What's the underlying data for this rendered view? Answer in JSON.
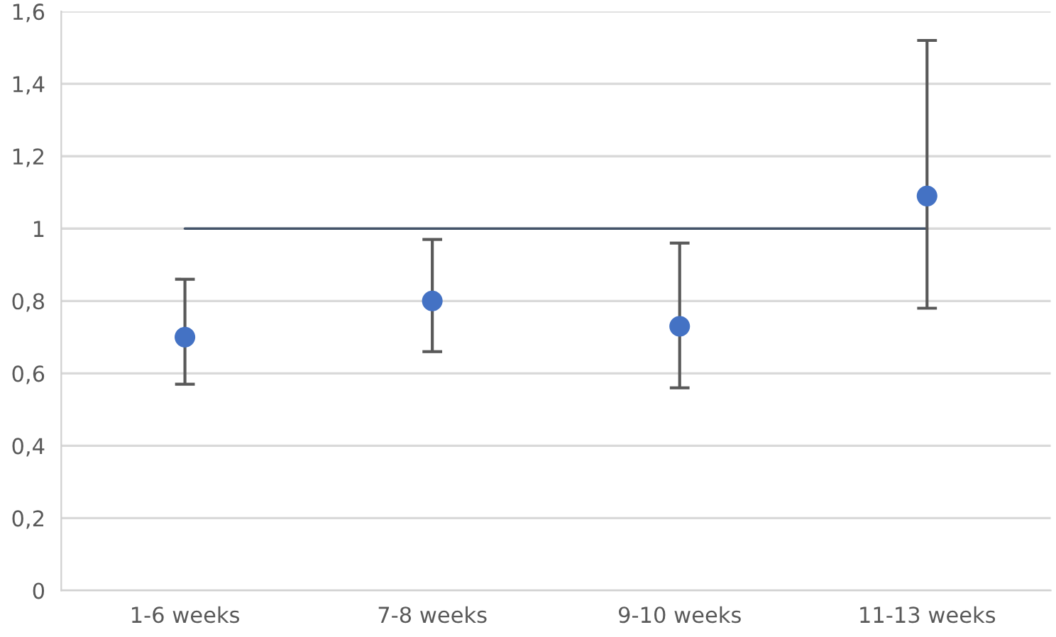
{
  "chart_data": {
    "type": "scatter",
    "categories": [
      "1-6 weeks",
      "7-8 weeks",
      "9-10 weeks",
      "11-13 weeks"
    ],
    "series": [
      {
        "type": "line",
        "color": "#44546a",
        "values": [
          1,
          1,
          1,
          1
        ],
        "marker": "none"
      },
      {
        "color": "#4472c4",
        "values": [
          0.7,
          0.8,
          0.73,
          1.09
        ],
        "errors": [
          [
            0.57,
            0.86
          ],
          [
            0.66,
            0.97
          ],
          [
            0.56,
            0.96
          ],
          [
            0.78,
            1.52
          ]
        ],
        "marker": "circle"
      }
    ],
    "ylim": [
      0,
      1.6
    ],
    "yticks": [
      {
        "value": 0,
        "label": "0"
      },
      {
        "value": 0.2,
        "label": "0,2"
      },
      {
        "value": 0.4,
        "label": "0,4"
      },
      {
        "value": 0.6,
        "label": "0,6"
      },
      {
        "value": 0.8,
        "label": "0,8"
      },
      {
        "value": 1,
        "label": "1"
      },
      {
        "value": 1.2,
        "label": "1,2"
      },
      {
        "value": 1.4,
        "label": "1,4"
      },
      {
        "value": 1.6,
        "label": "1,6"
      }
    ],
    "grid": "y",
    "legend": false
  }
}
